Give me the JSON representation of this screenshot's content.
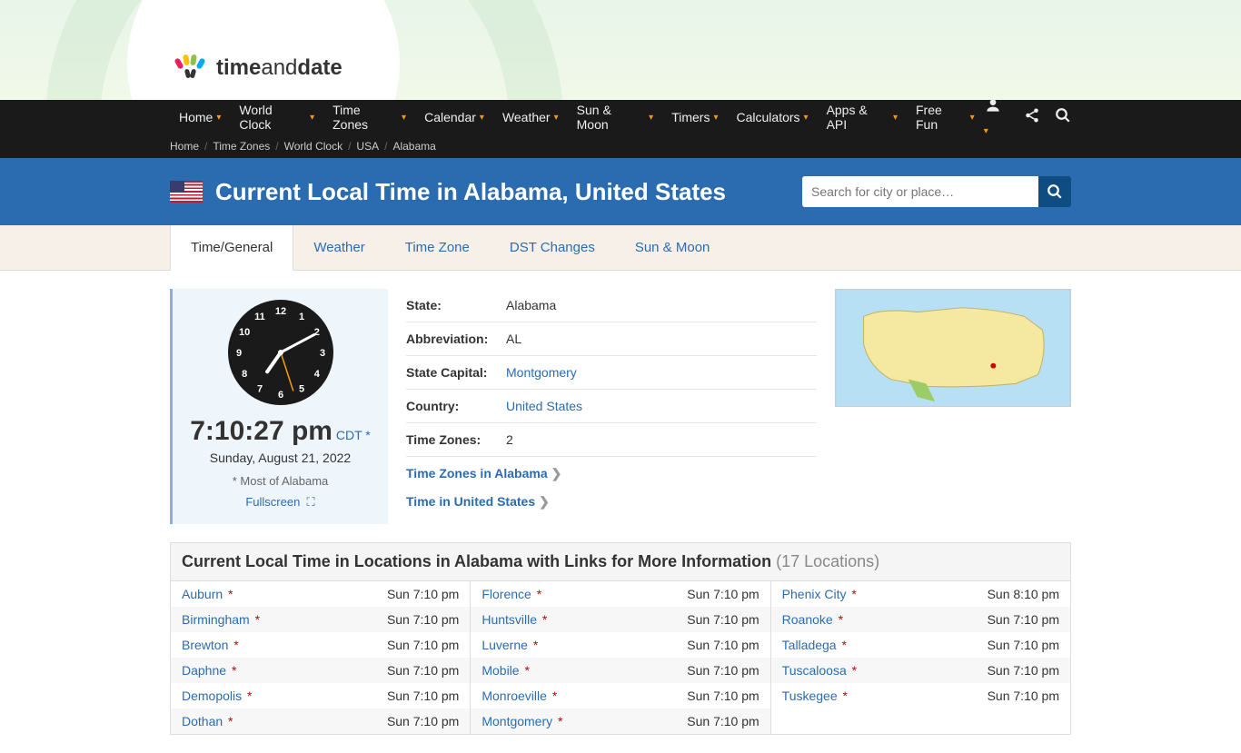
{
  "logo": {
    "text_a": "time",
    "text_b": "and",
    "text_c": "date"
  },
  "nav": {
    "items": [
      "Home",
      "World Clock",
      "Time Zones",
      "Calendar",
      "Weather",
      "Sun & Moon",
      "Timers",
      "Calculators",
      "Apps & API",
      "Free Fun"
    ]
  },
  "breadcrumb": {
    "items": [
      "Home",
      "Time Zones",
      "World Clock",
      "USA",
      "Alabama"
    ]
  },
  "header": {
    "title": "Current Local Time in Alabama, United States",
    "search_placeholder": "Search for city or place…"
  },
  "tabs": {
    "items": [
      "Time/General",
      "Weather",
      "Time Zone",
      "DST Changes",
      "Sun & Moon"
    ],
    "active_index": 0
  },
  "clock": {
    "time": "7:10:27 pm",
    "tz": "CDT",
    "tz_star": "*",
    "date": "Sunday, August 21, 2022",
    "note": "* Most of Alabama",
    "fullscreen": "Fullscreen",
    "hour_angle": 215,
    "minute_angle": 62,
    "second_angle": 162
  },
  "info": {
    "rows": [
      {
        "label": "State:",
        "value": "Alabama",
        "link": false
      },
      {
        "label": "Abbreviation:",
        "value": "AL",
        "link": false
      },
      {
        "label": "State Capital:",
        "value": "Montgomery",
        "link": true
      },
      {
        "label": "Country:",
        "value": "United States",
        "link": true
      },
      {
        "label": "Time Zones:",
        "value": "2",
        "link": false
      }
    ],
    "links": [
      "Time Zones in Alabama",
      "Time in United States"
    ]
  },
  "locations": {
    "title": "Current Local Time in Locations in Alabama with Links for More Information",
    "count_text": "(17 Locations)",
    "columns": [
      [
        {
          "name": "Auburn",
          "star": true,
          "time": "Sun 7:10 pm"
        },
        {
          "name": "Birmingham",
          "star": true,
          "time": "Sun 7:10 pm"
        },
        {
          "name": "Brewton",
          "star": true,
          "time": "Sun 7:10 pm"
        },
        {
          "name": "Daphne",
          "star": true,
          "time": "Sun 7:10 pm"
        },
        {
          "name": "Demopolis",
          "star": true,
          "time": "Sun 7:10 pm"
        },
        {
          "name": "Dothan",
          "star": true,
          "time": "Sun 7:10 pm"
        }
      ],
      [
        {
          "name": "Florence",
          "star": true,
          "time": "Sun 7:10 pm"
        },
        {
          "name": "Huntsville",
          "star": true,
          "time": "Sun 7:10 pm"
        },
        {
          "name": "Luverne",
          "star": true,
          "time": "Sun 7:10 pm"
        },
        {
          "name": "Mobile",
          "star": true,
          "time": "Sun 7:10 pm"
        },
        {
          "name": "Monroeville",
          "star": true,
          "time": "Sun 7:10 pm"
        },
        {
          "name": "Montgomery",
          "star": true,
          "time": "Sun 7:10 pm"
        }
      ],
      [
        {
          "name": "Phenix City",
          "star": true,
          "time": "Sun 8:10 pm"
        },
        {
          "name": "Roanoke",
          "star": true,
          "time": "Sun 7:10 pm"
        },
        {
          "name": "Talladega",
          "star": true,
          "time": "Sun 7:10 pm"
        },
        {
          "name": "Tuscaloosa",
          "star": true,
          "time": "Sun 7:10 pm"
        },
        {
          "name": "Tuskegee",
          "star": true,
          "time": "Sun 7:10 pm"
        }
      ]
    ]
  },
  "colors": {
    "nav_bg": "#1a1a1a",
    "blue_header": "#2b6cb0",
    "link": "#2b6cb0",
    "accent_orange": "#f90",
    "tabs_bg": "#f7f0e8",
    "clock_panel_bg": "#eef5fb"
  }
}
